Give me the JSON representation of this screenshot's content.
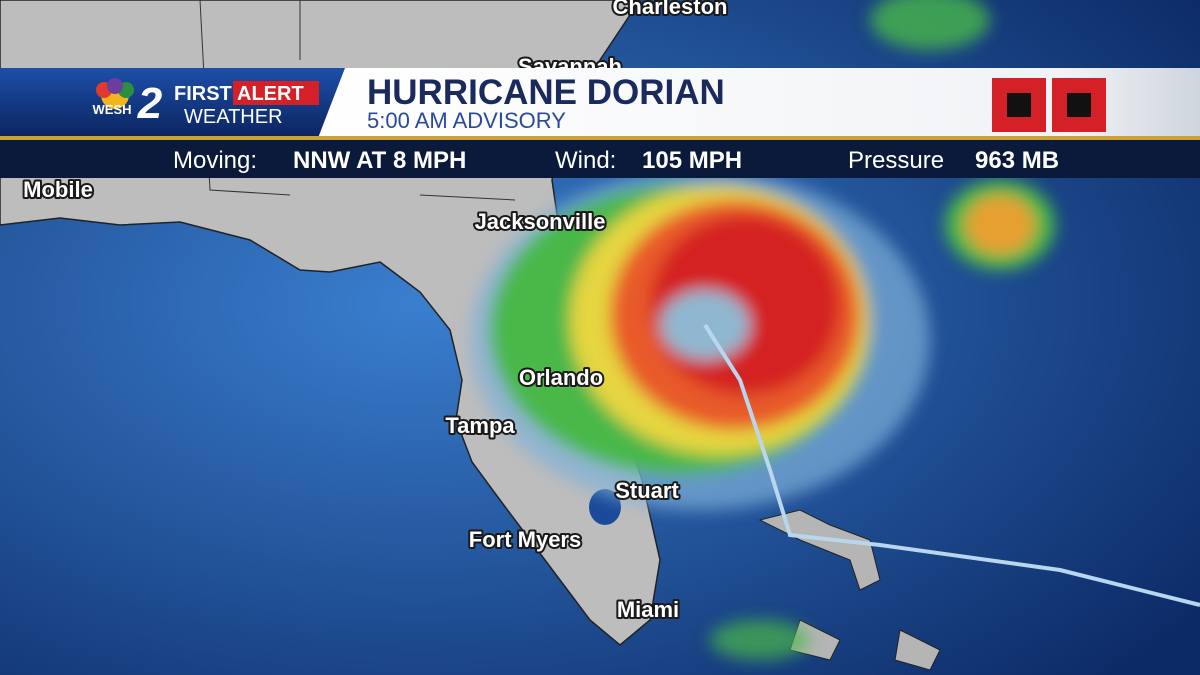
{
  "header": {
    "station": "WESH",
    "channel": "2",
    "first": "FIRST",
    "alert": "ALERT",
    "weather": "WEATHER",
    "title": "HURRICANE DORIAN",
    "subtitle": "5:00 AM ADVISORY"
  },
  "stats": [
    {
      "label": "Moving:",
      "value": "NNW AT 8 MPH"
    },
    {
      "label": "Wind:",
      "value": "105 MPH"
    },
    {
      "label": "Pressure",
      "value": "963 MB"
    }
  ],
  "cities": [
    "Charleston",
    "Savannah",
    "Mobile",
    "Jacksonville",
    "Orlando",
    "Tampa",
    "Stuart",
    "Fort Myers",
    "Miami"
  ]
}
